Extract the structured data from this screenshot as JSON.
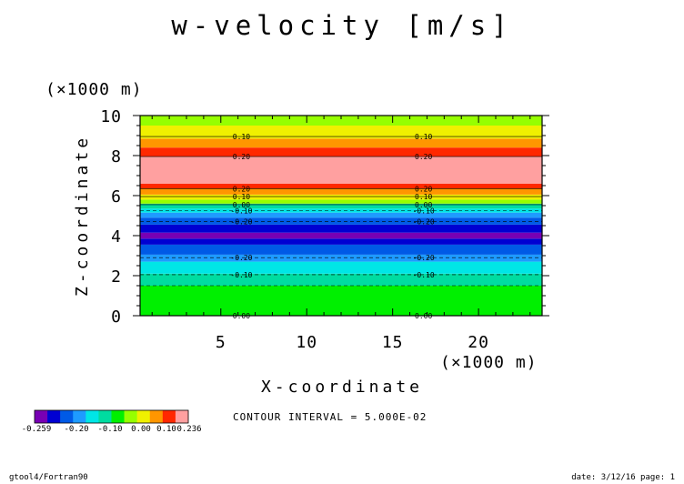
{
  "chart_data": {
    "type": "heatmap",
    "title": "w-velocity [m/s]",
    "xlabel": "X-coordinate",
    "ylabel": "Z-coordinate",
    "x_unit": "(×1000 m)",
    "y_unit": "(×1000 m)",
    "xlim": [
      0.3,
      23.7
    ],
    "ylim": [
      0,
      10
    ],
    "x_ticks": [
      5,
      10,
      15,
      20
    ],
    "y_ticks": [
      0,
      2,
      4,
      6,
      8,
      10
    ],
    "x_tick_labels": [
      "5",
      "10",
      "15",
      "20"
    ],
    "y_tick_labels": [
      "0",
      "2",
      "4",
      "6",
      "8",
      "10"
    ],
    "levels": [
      -0.259,
      -0.25,
      -0.2,
      -0.15,
      -0.1,
      -0.05,
      0.0,
      0.05,
      0.1,
      0.15,
      0.2,
      0.236
    ],
    "colors": [
      "#7800b4",
      "#0000d2",
      "#005ae6",
      "#1e9bff",
      "#00e6e6",
      "#00dca0",
      "#00f000",
      "#96ff00",
      "#f0f000",
      "#ff9600",
      "#ff2800",
      "#ffa0a0"
    ],
    "bands": [
      {
        "z0": 0.0,
        "z1": 1.5,
        "color": "#00f000"
      },
      {
        "z0": 1.5,
        "z1": 2.1,
        "color": "#00dca0"
      },
      {
        "z0": 2.1,
        "z1": 2.7,
        "color": "#00e6e6"
      },
      {
        "z0": 2.7,
        "z1": 3.05,
        "color": "#1e9bff"
      },
      {
        "z0": 3.05,
        "z1": 3.55,
        "color": "#005ae6"
      },
      {
        "z0": 3.55,
        "z1": 3.85,
        "color": "#0000d2"
      },
      {
        "z0": 3.85,
        "z1": 4.15,
        "color": "#7800b4"
      },
      {
        "z0": 4.15,
        "z1": 4.55,
        "color": "#0000d2"
      },
      {
        "z0": 4.55,
        "z1": 4.9,
        "color": "#005ae6"
      },
      {
        "z0": 4.9,
        "z1": 5.15,
        "color": "#1e9bff"
      },
      {
        "z0": 5.15,
        "z1": 5.35,
        "color": "#00e6e6"
      },
      {
        "z0": 5.35,
        "z1": 5.6,
        "color": "#00dca0"
      },
      {
        "z0": 5.6,
        "z1": 5.8,
        "color": "#96ff00"
      },
      {
        "z0": 5.8,
        "z1": 6.05,
        "color": "#f0f000"
      },
      {
        "z0": 6.05,
        "z1": 6.35,
        "color": "#ff9600"
      },
      {
        "z0": 6.35,
        "z1": 6.6,
        "color": "#ff2800"
      },
      {
        "z0": 6.6,
        "z1": 7.95,
        "color": "#ffa0a0"
      },
      {
        "z0": 7.95,
        "z1": 8.4,
        "color": "#ff2800"
      },
      {
        "z0": 8.4,
        "z1": 8.85,
        "color": "#ff9600"
      },
      {
        "z0": 8.85,
        "z1": 9.5,
        "color": "#f0f000"
      },
      {
        "z0": 9.5,
        "z1": 10.0,
        "color": "#96ff00"
      }
    ],
    "contours": [
      {
        "z": 0.0,
        "label": "0.00",
        "dashed": false
      },
      {
        "z": 1.5,
        "label": "",
        "dashed": true
      },
      {
        "z": 2.05,
        "label": "-0.10",
        "dashed": true
      },
      {
        "z": 2.9,
        "label": "-0.20",
        "dashed": true
      },
      {
        "z": 4.7,
        "label": "-0.20",
        "dashed": true
      },
      {
        "z": 5.25,
        "label": "-0.10",
        "dashed": true
      },
      {
        "z": 5.55,
        "label": "0.00",
        "dashed": false
      },
      {
        "z": 5.95,
        "label": "0.10",
        "dashed": false
      },
      {
        "z": 6.35,
        "label": "0.20",
        "dashed": false
      },
      {
        "z": 7.95,
        "label": "0.20",
        "dashed": false
      },
      {
        "z": 8.95,
        "label": "0.10",
        "dashed": false
      }
    ],
    "contour_label_x": [
      6.2,
      16.8
    ],
    "colorbar_labels": [
      "-0.259",
      "-0.20",
      "-0.10",
      "0.00",
      "0.10",
      "0.236"
    ],
    "contour_interval_text": "CONTOUR INTERVAL = 5.000E-02"
  },
  "footer": {
    "left": "gtool4/Fortran90",
    "right": "date: 3/12/16 page: 1"
  }
}
